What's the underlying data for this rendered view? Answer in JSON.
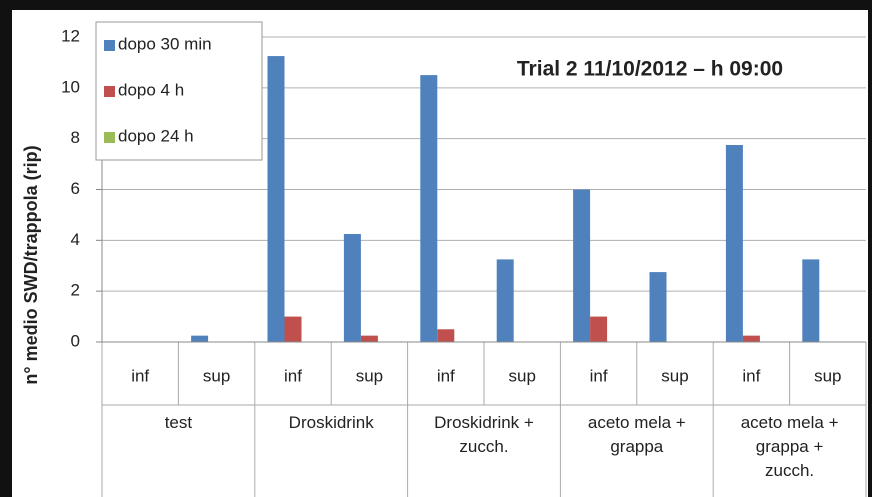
{
  "chart_data": {
    "type": "bar",
    "title": "Trial 2  11/10/2012 – h 09:00",
    "y_label": "n° medio SWD/trappola (rip)",
    "categories": [
      "inf",
      "sup",
      "inf",
      "sup",
      "inf",
      "sup",
      "inf",
      "sup",
      "inf",
      "sup"
    ],
    "groups": [
      "test",
      "Droskidrink",
      "Droskidrink + zucch.",
      "aceto mela + grappa",
      "aceto mela + grappa + zucch."
    ],
    "series": [
      {
        "name": "dopo 30 min",
        "color": "#4f81bd",
        "values": [
          0,
          0.25,
          11.25,
          4.25,
          10.5,
          3.25,
          6,
          2.75,
          7.75,
          3.25
        ]
      },
      {
        "name": "dopo 4 h",
        "color": "#c0504d",
        "values": [
          0,
          0,
          1,
          0.25,
          0.5,
          0,
          1,
          0,
          0.25,
          0
        ]
      },
      {
        "name": "dopo 24 h",
        "color": "#9bbb59",
        "values": [
          0,
          0,
          0,
          0,
          0,
          0,
          0,
          0,
          0,
          0
        ]
      }
    ],
    "ylim": [
      0,
      12
    ],
    "yticks": [
      0,
      2,
      4,
      6,
      8,
      10,
      12
    ],
    "grid": true,
    "legend": "top-left"
  }
}
